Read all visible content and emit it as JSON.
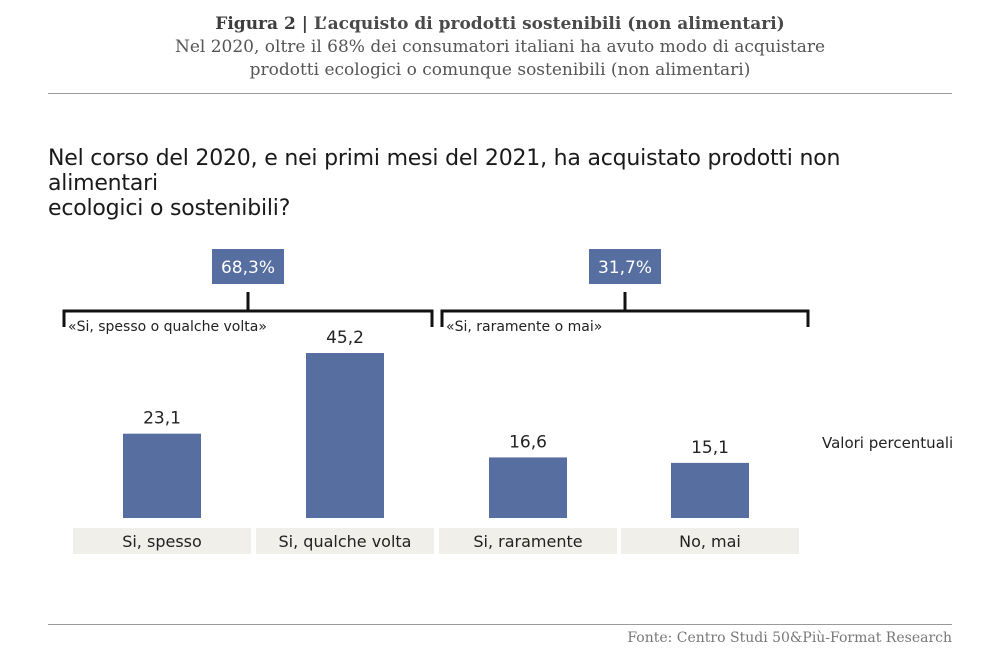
{
  "header": {
    "figure_label": "Figura 2 |",
    "title": "L’acquisto di prodotti sostenibili (non alimentari)",
    "subtitle_line1": "Nel 2020, oltre il 68% dei consumatori italiani ha avuto modo di acquistare",
    "subtitle_line2": "prodotti ecologici o comunque sostenibili (non alimentari)"
  },
  "question": {
    "line1": "Nel corso del 2020, e nei primi mesi del 2021, ha acquistato prodotti non alimentari",
    "line2": "ecologici o sostenibili?"
  },
  "note": "Valori percentuali",
  "source": "Fonte: Centro Studi 50&Più-Format Research",
  "colors": {
    "bar": "#566ea0",
    "category_bg": "#f0efea",
    "bracket": "#111111",
    "badge": "#566ea0"
  },
  "chart_data": {
    "type": "bar",
    "categories": [
      "Si, spesso",
      "Si, qualche volta",
      "Si, raramente",
      "No, mai"
    ],
    "values": [
      23.1,
      45.2,
      16.6,
      15.1
    ],
    "value_labels": [
      "23,1",
      "45,2",
      "16,6",
      "15,1"
    ],
    "ylim": [
      0,
      50
    ],
    "unit": "Valori percentuali",
    "groups": [
      {
        "label": "«Si, spesso o qualche volta»",
        "total_label": "68,3%",
        "total": 68.3,
        "members": [
          0,
          1
        ]
      },
      {
        "label": "«Si, raramente o mai»",
        "total_label": "31,7%",
        "total": 31.7,
        "members": [
          2,
          3
        ]
      }
    ]
  }
}
